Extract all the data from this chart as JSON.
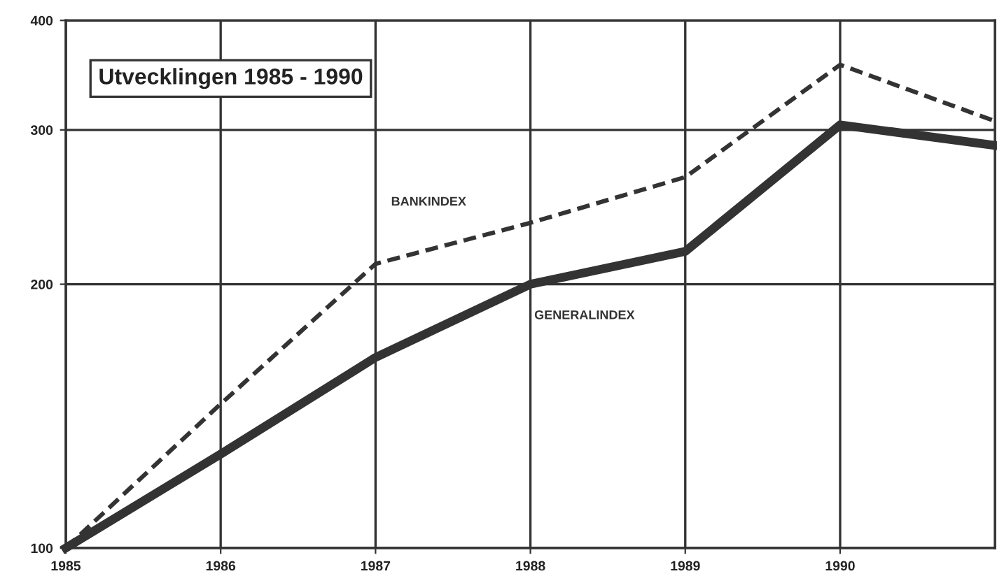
{
  "chart_data": {
    "type": "line",
    "title": "Utvecklingen 1985 - 1990",
    "x": [
      1985,
      1986,
      1987,
      1988,
      1989,
      1990,
      1991
    ],
    "series": [
      {
        "name": "BANKINDEX",
        "color": "#333333",
        "line_style": "dashed",
        "values": [
          100,
          146,
          211,
          235,
          265,
          356,
          307
        ]
      },
      {
        "name": "GENERALINDEX",
        "color": "#333333",
        "line_style": "solid",
        "values": [
          100,
          128,
          165,
          200,
          218,
          304,
          288
        ]
      }
    ],
    "log": "y",
    "xlim": [
      1985,
      1991
    ],
    "xticks": [
      1985,
      1986,
      1987,
      1988,
      1989,
      1990
    ],
    "ylim": [
      100,
      400
    ],
    "yticks": [
      100,
      200,
      300,
      400
    ],
    "grid": true,
    "marker": "none"
  }
}
